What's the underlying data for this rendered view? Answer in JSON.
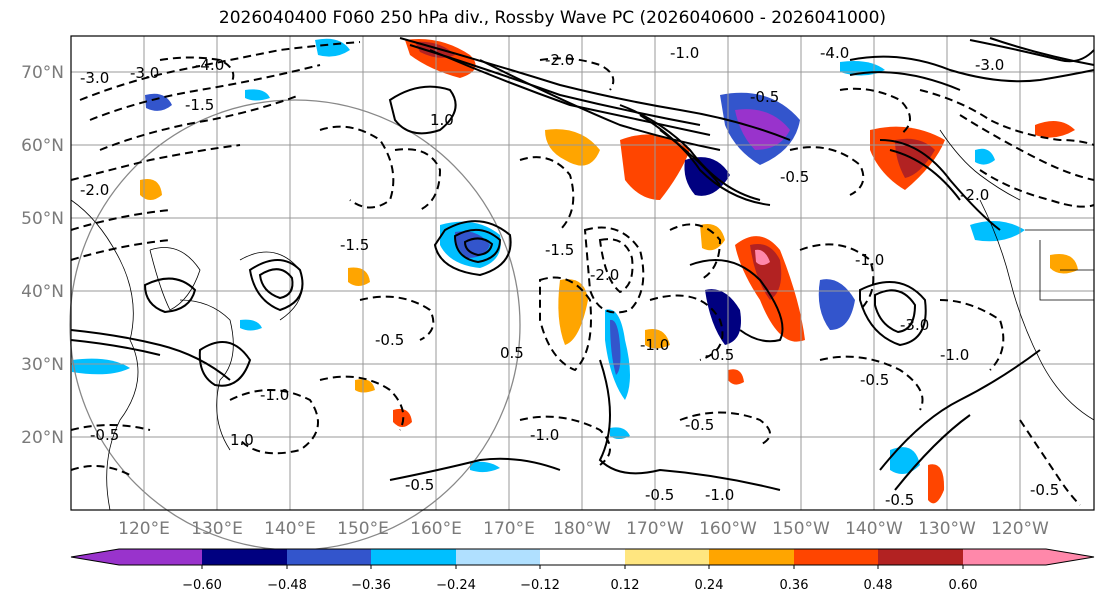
{
  "title": "2026040400 F060 250 hPa div., Rossby Wave PC (2026040600 - 2026041000)",
  "lat_labels": [
    "70°N",
    "60°N",
    "50°N",
    "40°N",
    "30°N",
    "20°N"
  ],
  "lon_labels": [
    "120°E",
    "130°E",
    "140°E",
    "150°E",
    "160°E",
    "170°E",
    "180°W",
    "170°W",
    "160°W",
    "150°W",
    "140°W",
    "130°W",
    "120°W"
  ],
  "colorbar": {
    "ticks": [
      "−0.60",
      "−0.48",
      "−0.36",
      "−0.24",
      "−0.12",
      "0.12",
      "0.24",
      "0.36",
      "0.48",
      "0.60"
    ],
    "colors": [
      "#9933cc",
      "#000080",
      "#3355cc",
      "#00bfff",
      "#b0e0ff",
      "#ffffff",
      "#ffe680",
      "#ffa500",
      "#ff4500",
      "#b22222",
      "#ff88aa"
    ]
  },
  "contour_labels": [
    "-3.0",
    "-4.0",
    "-1.5",
    "-2.0",
    "-3.0",
    "1.0",
    "-1.0",
    "-0.5",
    "0.5",
    "-2.0",
    "-0.5",
    "-1.0",
    "-1.5",
    "-0.5",
    "1.0",
    "-0.5",
    "-0.5",
    "-1.0",
    "-0.5",
    "-1.0",
    "-0.5",
    "-1.0",
    "-0.5",
    "-2.0",
    "-3.0",
    "-1.0",
    "-0.5",
    "-2.0",
    "-0.5",
    "-1.5",
    "-4.0",
    "-3.0",
    "-0.5",
    "-1.0"
  ]
}
